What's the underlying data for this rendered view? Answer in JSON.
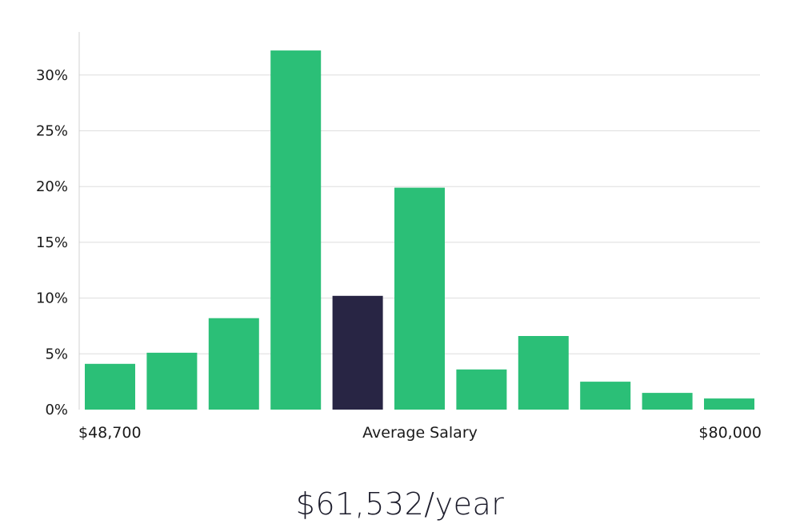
{
  "chart_data": {
    "type": "bar",
    "title": "",
    "xlabel": "Average Salary",
    "ylabel": "",
    "x_min_label": "$48,700",
    "x_max_label": "$80,000",
    "ylim": [
      0,
      34
    ],
    "yticks": [
      0,
      5,
      10,
      15,
      20,
      25,
      30
    ],
    "ytick_labels": [
      "0%",
      "5%",
      "10%",
      "15%",
      "20%",
      "25%",
      "30%"
    ],
    "values": [
      4.1,
      5.1,
      8.2,
      32.2,
      10.2,
      19.9,
      3.6,
      6.6,
      2.5,
      1.5,
      1.0
    ],
    "highlight_index": 4,
    "colors": {
      "bar": "#2bbf77",
      "highlight": "#282544",
      "grid": "#dedede",
      "axis": "#d0d0d0"
    }
  },
  "summary": {
    "salary": "$61,532/year"
  }
}
